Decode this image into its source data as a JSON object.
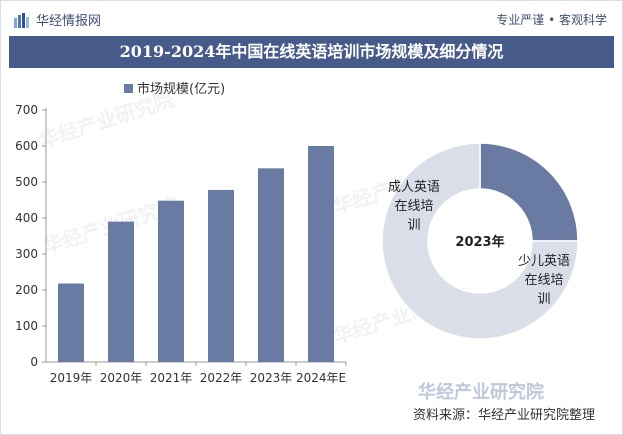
{
  "header": {
    "brand": "华经情报网",
    "tagline": "专业严谨 • 客观科学"
  },
  "title": "2019-2024年中国在线英语培训市场规模及细分情况",
  "source": "资料来源：华经产业研究院整理",
  "watermark": {
    "text": "华经产业研究院",
    "logo_text": "华经产业研究院"
  },
  "colors": {
    "bar": "#6a7ba3",
    "title_bg": "#475b8a",
    "adult": "#6a7ba3",
    "child": "#dadee8"
  },
  "chart_data": [
    {
      "type": "bar",
      "categories": [
        "2019年",
        "2020年",
        "2021年",
        "2022年",
        "2023年",
        "2024年E"
      ],
      "series": [
        {
          "name": "市场规模(亿元)",
          "values": [
            218,
            390,
            448,
            478,
            538,
            600
          ]
        }
      ],
      "ylim": [
        0,
        700
      ],
      "yticks": [
        0,
        100,
        200,
        300,
        400,
        500,
        600,
        700
      ],
      "legend": "top"
    },
    {
      "type": "pie",
      "donut": true,
      "center_label": "2023年",
      "slices": [
        {
          "label": "成人英语在线培训",
          "value": 25
        },
        {
          "label": "少儿英语在线培训",
          "value": 75
        }
      ]
    }
  ]
}
